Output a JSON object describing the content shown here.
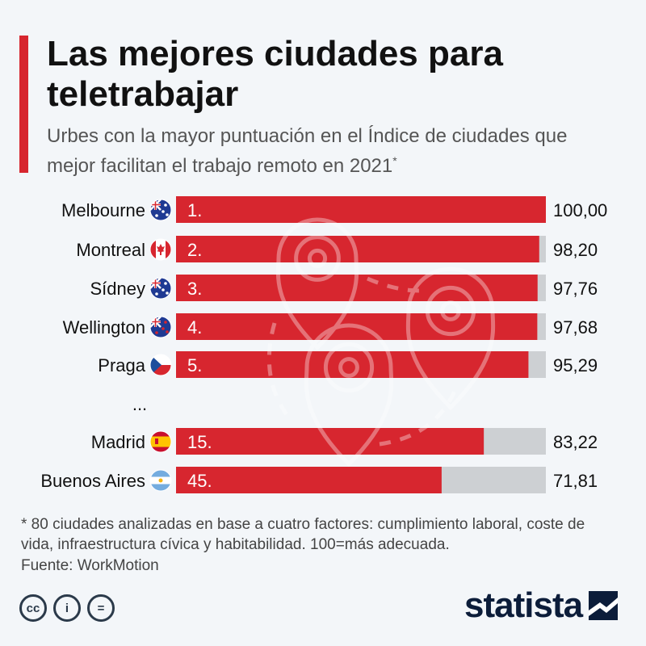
{
  "title": "Las mejores ciudades para teletrabajar",
  "subtitle": "Urbes con la mayor puntuación en el Índice de ciudades que mejor facilitan el trabajo remoto en 2021",
  "subtitle_marker": "*",
  "ellipsis": "...",
  "footnote": "* 80 ciudades analizadas en base a cuatro factores: cumplimiento laboral, coste de vida, infraestructura cívica y habitabilidad. 100=más adecuada.",
  "source": "Fuente: WorkMotion",
  "brand": "statista",
  "license_icons": [
    "creative-commons-icon",
    "attribution-icon",
    "no-derivatives-icon"
  ],
  "license_glyphs": [
    "cc",
    "i",
    "="
  ],
  "colors": {
    "bar": "#d7262f",
    "track": "#cdd0d3",
    "accent": "#d7262f",
    "background": "#f3f6f9"
  },
  "chart_data": {
    "type": "bar",
    "orientation": "horizontal",
    "xlim": [
      0,
      100
    ],
    "grid": false,
    "categories": [
      "Melbourne",
      "Montreal",
      "Sídney",
      "Wellington",
      "Praga",
      "Madrid",
      "Buenos Aires"
    ],
    "ranks": [
      "1.",
      "2.",
      "3.",
      "4.",
      "5.",
      "15.",
      "45."
    ],
    "values": [
      100.0,
      98.2,
      97.76,
      97.68,
      95.29,
      83.22,
      71.81
    ],
    "value_labels": [
      "100,00",
      "98,20",
      "97,76",
      "97,68",
      "95,29",
      "83,22",
      "71,81"
    ],
    "flags": [
      "australia-flag-icon",
      "canada-flag-icon",
      "australia-flag-icon",
      "new-zealand-flag-icon",
      "czech-flag-icon",
      "spain-flag-icon",
      "argentina-flag-icon"
    ]
  }
}
